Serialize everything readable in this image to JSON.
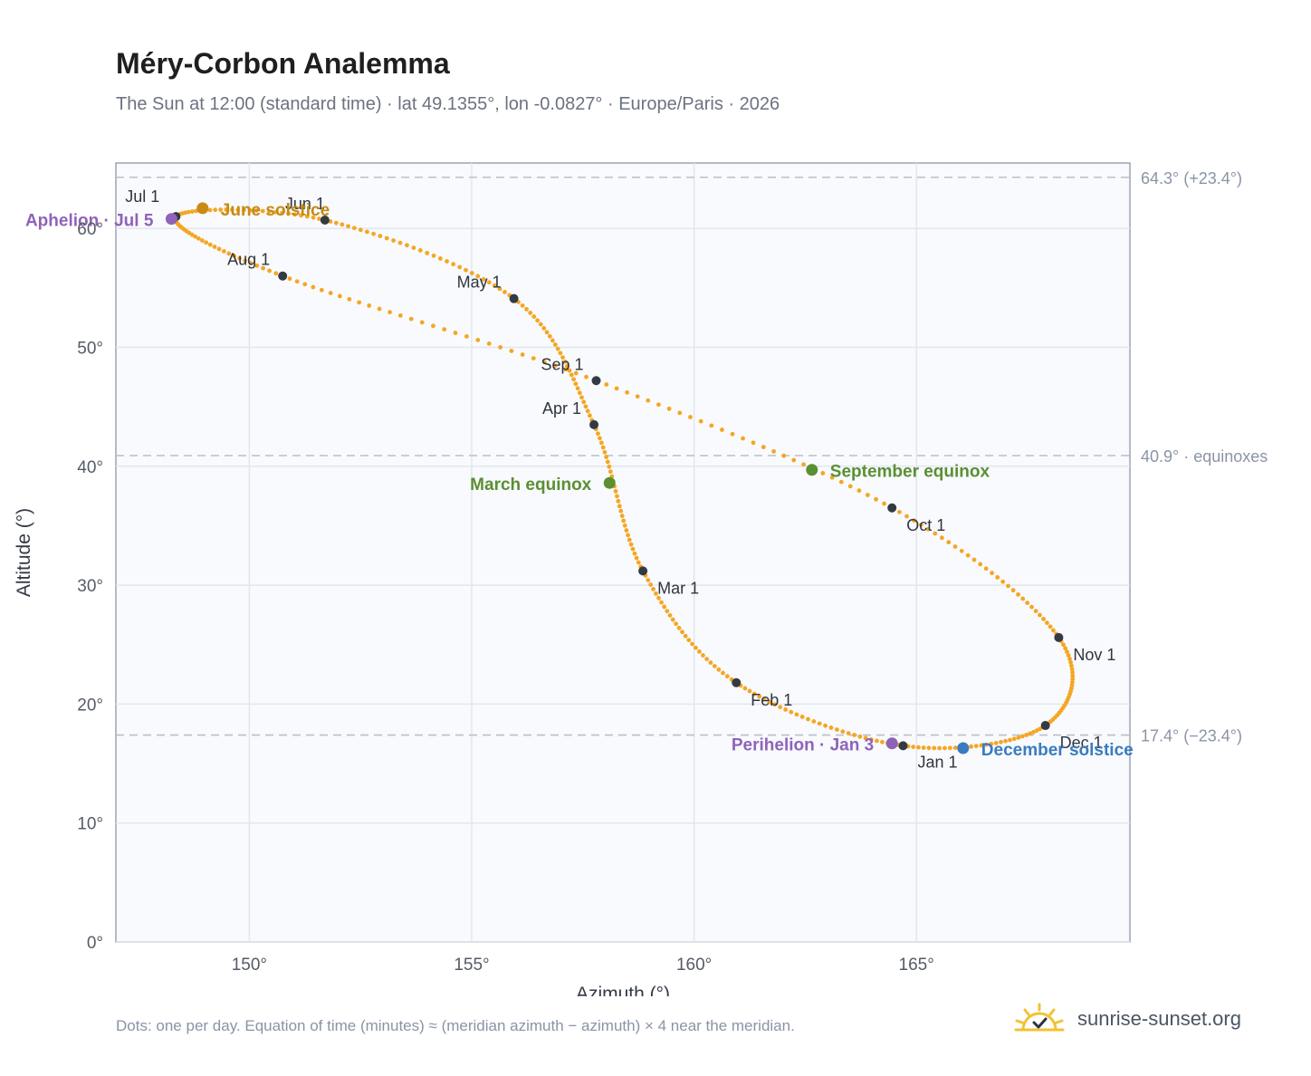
{
  "header": {
    "title": "Méry-Corbon Analemma",
    "subtitle": "The Sun at 12:00 (standard time) · lat 49.1355°, lon -0.0827° · Europe/Paris · 2026"
  },
  "footer": {
    "note": "Dots: one per day. Equation of time (minutes) ≈ (meridian azimuth − azimuth) × 4 near the meridian.",
    "brand": "sunrise-sunset.org"
  },
  "colors": {
    "curve": "#f5a623",
    "month_marker": "#333a44",
    "solstice_june": "#c88a12",
    "solstice_december": "#3a7bbf",
    "equinox": "#5a8f32",
    "apsis": "#8f63b8",
    "plot_background": "#f8fafd",
    "grid": "#e2e7ee",
    "reference_line": "#b8c0cc",
    "axis_text": "#555b66"
  },
  "icons": {
    "brand": "sun-logo-icon"
  },
  "chart_data": {
    "type": "scatter",
    "xlabel": "Azimuth (°)",
    "ylabel": "Altitude (°)",
    "xlim": [
      147,
      169.8
    ],
    "ylim": [
      0,
      65.5
    ],
    "x_ticks": [
      150,
      155,
      160,
      165
    ],
    "x_tick_labels": [
      "150°",
      "155°",
      "160°",
      "165°"
    ],
    "y_ticks": [
      0,
      10,
      20,
      30,
      40,
      50,
      60
    ],
    "y_tick_labels": [
      "0°",
      "10°",
      "20°",
      "30°",
      "40°",
      "50°",
      "60°"
    ],
    "grid": true,
    "reference_lines": [
      {
        "altitude": 64.3,
        "label": "64.3° (+23.4°)"
      },
      {
        "altitude": 40.9,
        "label": "40.9° · equinoxes"
      },
      {
        "altitude": 17.4,
        "label": "17.4° (−23.4°)"
      }
    ],
    "series_note": "one dot per day, 365 days",
    "month_markers": [
      {
        "label": "Jan 1",
        "az": 164.7,
        "alt": 16.5
      },
      {
        "label": "Feb 1",
        "az": 160.95,
        "alt": 21.8
      },
      {
        "label": "Mar 1",
        "az": 158.85,
        "alt": 31.2
      },
      {
        "label": "Apr 1",
        "az": 157.75,
        "alt": 43.5
      },
      {
        "label": "May 1",
        "az": 155.95,
        "alt": 54.1
      },
      {
        "label": "Jun 1",
        "az": 151.7,
        "alt": 60.7
      },
      {
        "label": "Jul 1",
        "az": 148.35,
        "alt": 61.0
      },
      {
        "label": "Aug 1",
        "az": 150.75,
        "alt": 56.0
      },
      {
        "label": "Sep 1",
        "az": 157.8,
        "alt": 47.2
      },
      {
        "label": "Oct 1",
        "az": 164.45,
        "alt": 36.5
      },
      {
        "label": "Nov 1",
        "az": 168.2,
        "alt": 25.6
      },
      {
        "label": "Dec 1",
        "az": 167.9,
        "alt": 18.2
      }
    ],
    "events": [
      {
        "label": "June solstice",
        "az": 148.95,
        "alt": 61.7,
        "kind": "solstice_june"
      },
      {
        "label": "December solstice",
        "az": 166.05,
        "alt": 16.3,
        "kind": "solstice_december"
      },
      {
        "label": "March equinox",
        "az": 158.1,
        "alt": 38.6,
        "kind": "equinox"
      },
      {
        "label": "September equinox",
        "az": 162.65,
        "alt": 39.7,
        "kind": "equinox"
      },
      {
        "label": "Aphelion · Jul 5",
        "az": 148.25,
        "alt": 60.8,
        "kind": "apsis"
      },
      {
        "label": "Perihelion · Jan 3",
        "az": 164.45,
        "alt": 16.7,
        "kind": "apsis"
      }
    ]
  }
}
